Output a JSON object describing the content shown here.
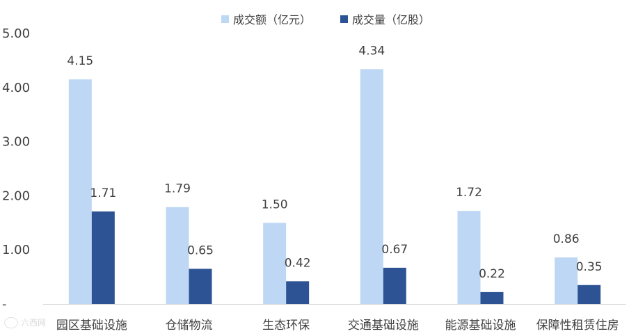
{
  "chart_data": {
    "type": "bar",
    "categories": [
      "园区基础设施",
      "仓储物流",
      "生态环保",
      "交通基础设施",
      "能源基础设施",
      "保障性租赁住房"
    ],
    "series": [
      {
        "name": "成交额（亿元）",
        "values": [
          4.15,
          1.79,
          1.5,
          4.34,
          1.72,
          0.86
        ],
        "color": "#bdd7f4"
      },
      {
        "name": "成交量（亿股）",
        "values": [
          1.71,
          0.65,
          0.42,
          0.67,
          0.22,
          0.35
        ],
        "color": "#2e5394"
      }
    ],
    "ylim": [
      0,
      5
    ],
    "yticks": [
      "5.00",
      "4.00",
      "3.00",
      "2.00",
      "1.00",
      "-"
    ],
    "data_labels": true,
    "legend_position": "top-center",
    "grid": false
  },
  "watermark": "六西网"
}
